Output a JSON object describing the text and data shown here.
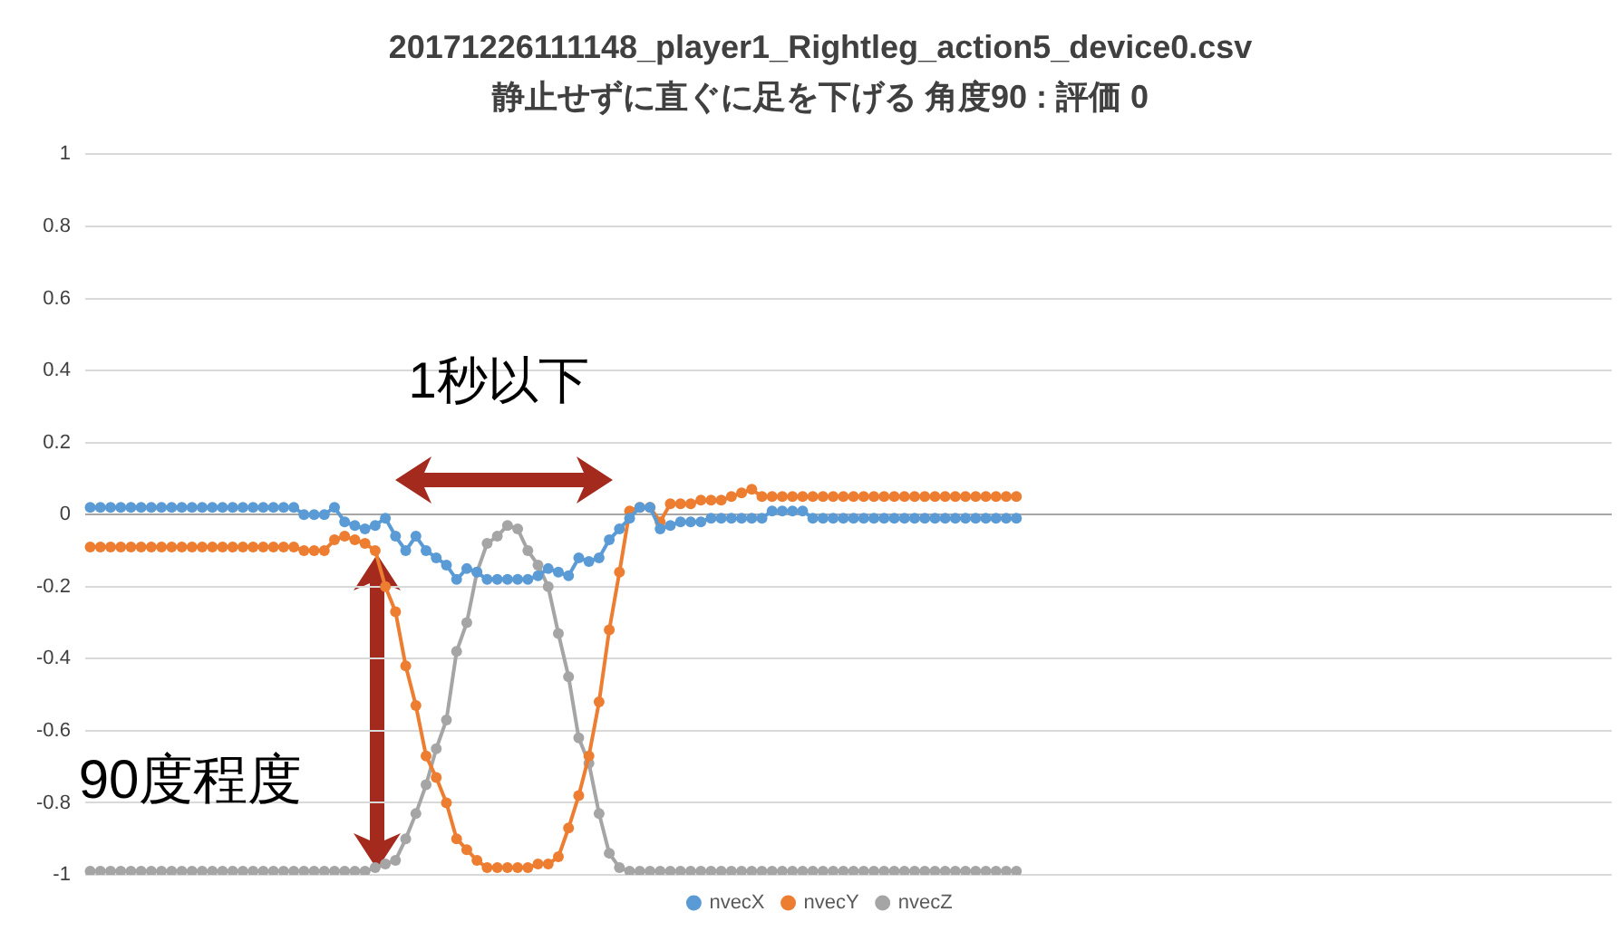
{
  "chart_data": {
    "type": "line",
    "title": "20171226111148_player1_Rightleg_action5_device0.csv",
    "subtitle": "静止せずに直ぐに足を下げる 角度90 : 評価 0",
    "annotations": [
      "1秒以下",
      "90度程度"
    ],
    "categories": [
      null,
      null,
      null,
      null,
      null,
      null,
      null,
      null,
      null,
      null,
      null,
      null,
      null,
      null,
      null,
      null,
      null,
      null,
      null,
      null,
      null,
      null,
      null,
      null,
      null,
      null,
      null,
      null,
      null,
      null,
      null,
      null,
      null,
      null,
      null,
      null,
      null,
      null,
      null,
      null,
      null,
      null,
      null,
      null,
      null,
      null,
      null,
      null,
      null,
      null,
      null,
      null,
      null,
      null,
      null,
      null,
      null,
      null,
      null,
      null,
      null,
      null,
      null,
      null,
      null,
      null,
      null,
      null,
      null,
      null,
      null,
      null,
      null,
      null,
      null,
      null,
      null,
      null,
      null,
      null,
      null,
      null,
      null,
      null,
      null,
      null,
      null,
      null,
      null,
      null,
      null,
      null,
      null,
      null,
      null,
      null,
      null,
      null,
      null,
      null,
      null,
      null,
      null,
      null,
      null,
      null,
      null,
      null,
      null,
      null,
      null,
      null,
      null,
      null,
      null,
      null,
      null,
      null,
      null,
      null,
      null,
      null,
      null,
      null,
      null,
      null,
      null,
      null,
      null,
      null,
      null,
      null,
      null,
      null,
      null,
      null,
      null,
      null,
      null,
      null,
      null,
      null,
      null,
      null,
      null,
      null,
      null,
      null,
      null,
      null
    ],
    "series": [
      {
        "name": "nvecX",
        "color": "#5b9bd5",
        "values": [
          0.02,
          0.02,
          0.02,
          0.02,
          0.02,
          0.02,
          0.02,
          0.02,
          0.02,
          0.02,
          0.02,
          0.02,
          0.02,
          0.02,
          0.02,
          0.02,
          0.02,
          0.02,
          0.02,
          0.02,
          0.02,
          0,
          0,
          0,
          0.02,
          -0.02,
          -0.03,
          -0.04,
          -0.03,
          -0.01,
          -0.06,
          -0.1,
          -0.06,
          -0.1,
          -0.12,
          -0.14,
          -0.18,
          -0.15,
          -0.16,
          -0.18,
          -0.18,
          -0.18,
          -0.18,
          -0.18,
          -0.17,
          -0.15,
          -0.16,
          -0.17,
          -0.12,
          -0.13,
          -0.12,
          -0.07,
          -0.04,
          -0.01,
          0.02,
          0.02,
          -0.04,
          -0.03,
          -0.02,
          -0.02,
          -0.02,
          -0.01,
          -0.01,
          -0.01,
          -0.01,
          -0.01,
          -0.01,
          0.01,
          0.01,
          0.01,
          0.01,
          -0.01,
          -0.01,
          -0.01,
          -0.01,
          -0.01,
          -0.01,
          -0.01,
          -0.01,
          -0.01,
          -0.01,
          -0.01,
          -0.01,
          -0.01,
          -0.01,
          -0.01,
          -0.01,
          -0.01,
          -0.01,
          -0.01,
          -0.01,
          -0.01,
          null,
          null,
          null,
          null,
          null,
          null,
          null,
          null,
          null,
          null,
          null,
          null,
          null,
          null,
          null,
          null,
          null,
          null,
          null,
          null,
          null,
          null,
          null,
          null,
          null,
          null,
          null,
          null,
          null,
          null,
          null,
          null,
          null,
          null,
          null,
          null,
          null,
          null,
          null,
          null,
          null,
          null,
          null,
          null,
          null,
          null,
          null,
          null,
          null,
          null,
          null,
          null,
          null,
          null,
          null,
          null,
          null,
          null
        ]
      },
      {
        "name": "nvecY",
        "color": "#ed7d31",
        "values": [
          -0.09,
          -0.09,
          -0.09,
          -0.09,
          -0.09,
          -0.09,
          -0.09,
          -0.09,
          -0.09,
          -0.09,
          -0.09,
          -0.09,
          -0.09,
          -0.09,
          -0.09,
          -0.09,
          -0.09,
          -0.09,
          -0.09,
          -0.09,
          -0.09,
          -0.1,
          -0.1,
          -0.1,
          -0.07,
          -0.06,
          -0.07,
          -0.08,
          -0.1,
          -0.2,
          -0.27,
          -0.42,
          -0.53,
          -0.67,
          -0.73,
          -0.8,
          -0.9,
          -0.93,
          -0.96,
          -0.98,
          -0.98,
          -0.98,
          -0.98,
          -0.98,
          -0.97,
          -0.97,
          -0.95,
          -0.87,
          -0.78,
          -0.67,
          -0.52,
          -0.32,
          -0.16,
          0.01,
          0.02,
          0.02,
          -0.02,
          0.03,
          0.03,
          0.03,
          0.04,
          0.04,
          0.04,
          0.05,
          0.06,
          0.07,
          0.05,
          0.05,
          0.05,
          0.05,
          0.05,
          0.05,
          0.05,
          0.05,
          0.05,
          0.05,
          0.05,
          0.05,
          0.05,
          0.05,
          0.05,
          0.05,
          0.05,
          0.05,
          0.05,
          0.05,
          0.05,
          0.05,
          0.05,
          0.05,
          0.05,
          0.05,
          null,
          null,
          null,
          null,
          null,
          null,
          null,
          null,
          null,
          null,
          null,
          null,
          null,
          null,
          null,
          null,
          null,
          null,
          null,
          null,
          null,
          null,
          null,
          null,
          null,
          null,
          null,
          null,
          null,
          null,
          null,
          null,
          null,
          null,
          null,
          null,
          null,
          null,
          null,
          null,
          null,
          null,
          null,
          null,
          null,
          null,
          null,
          null,
          null,
          null,
          null,
          null,
          null,
          null,
          null,
          null,
          null,
          null
        ]
      },
      {
        "name": "nvecZ",
        "color": "#a5a5a5",
        "values": [
          -0.99,
          -0.99,
          -0.99,
          -0.99,
          -0.99,
          -0.99,
          -0.99,
          -0.99,
          -0.99,
          -0.99,
          -0.99,
          -0.99,
          -0.99,
          -0.99,
          -0.99,
          -0.99,
          -0.99,
          -0.99,
          -0.99,
          -0.99,
          -0.99,
          -0.99,
          -0.99,
          -0.99,
          -0.99,
          -0.99,
          -0.99,
          -0.99,
          -0.98,
          -0.97,
          -0.96,
          -0.9,
          -0.83,
          -0.75,
          -0.65,
          -0.57,
          -0.38,
          -0.3,
          -0.16,
          -0.08,
          -0.06,
          -0.03,
          -0.04,
          -0.1,
          -0.14,
          -0.2,
          -0.33,
          -0.45,
          -0.62,
          -0.69,
          -0.83,
          -0.94,
          -0.98,
          -0.99,
          -0.99,
          -0.99,
          -0.99,
          -0.99,
          -0.99,
          -0.99,
          -0.99,
          -0.99,
          -0.99,
          -0.99,
          -0.99,
          -0.99,
          -0.99,
          -0.99,
          -0.99,
          -0.99,
          -0.99,
          -0.99,
          -0.99,
          -0.99,
          -0.99,
          -0.99,
          -0.99,
          -0.99,
          -0.99,
          -0.99,
          -0.99,
          -0.99,
          -0.99,
          -0.99,
          -0.99,
          -0.99,
          -0.99,
          -0.99,
          -0.99,
          -0.99,
          -0.99,
          -0.99,
          null,
          null,
          null,
          null,
          null,
          null,
          null,
          null,
          null,
          null,
          null,
          null,
          null,
          null,
          null,
          null,
          null,
          null,
          null,
          null,
          null,
          null,
          null,
          null,
          null,
          null,
          null,
          null,
          null,
          null,
          null,
          null,
          null,
          null,
          null,
          null,
          null,
          null,
          null,
          null,
          null,
          null,
          null,
          null,
          null,
          null,
          null,
          null,
          null,
          null,
          null,
          null,
          null,
          null,
          null,
          null,
          null,
          null
        ]
      }
    ],
    "ylim": [
      -1,
      1
    ],
    "yticks": [
      -1,
      -0.8,
      -0.6,
      -0.4,
      -0.2,
      0,
      0.2,
      0.4,
      0.6,
      0.8,
      1
    ],
    "grid": "y",
    "legend": "bottom",
    "marker": "circle",
    "line_style": "solid",
    "tick_labels": "y"
  }
}
